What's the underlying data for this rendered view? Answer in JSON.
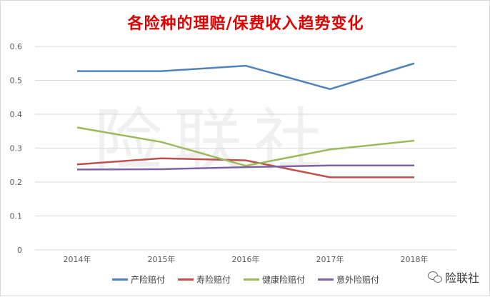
{
  "chart_data": {
    "type": "line",
    "title": "各险种的理赔/保费收入趋势变化",
    "categories": [
      "2014年",
      "2015年",
      "2016年",
      "2017年",
      "2018年"
    ],
    "ylim": [
      0,
      0.6
    ],
    "yticks": [
      "0",
      "0.1",
      "0.2",
      "0.3",
      "0.4",
      "0.5",
      "0.6"
    ],
    "grid": true,
    "legend_position": "bottom",
    "series": [
      {
        "name": "产险赔付",
        "color": "#4f81bd",
        "values": [
          0.527,
          0.527,
          0.543,
          0.474,
          0.55
        ]
      },
      {
        "name": "寿险赔付",
        "color": "#c0504d",
        "values": [
          0.252,
          0.27,
          0.264,
          0.214,
          0.214
        ]
      },
      {
        "name": "健康险赔付",
        "color": "#9bbb59",
        "values": [
          0.361,
          0.318,
          0.248,
          0.296,
          0.322
        ]
      },
      {
        "name": "意外险赔付",
        "color": "#8064a2",
        "values": [
          0.237,
          0.238,
          0.244,
          0.249,
          0.249
        ]
      }
    ]
  },
  "background_watermark": "险联社",
  "watermark": {
    "icon": "wechat-icon",
    "text": "险联社"
  }
}
